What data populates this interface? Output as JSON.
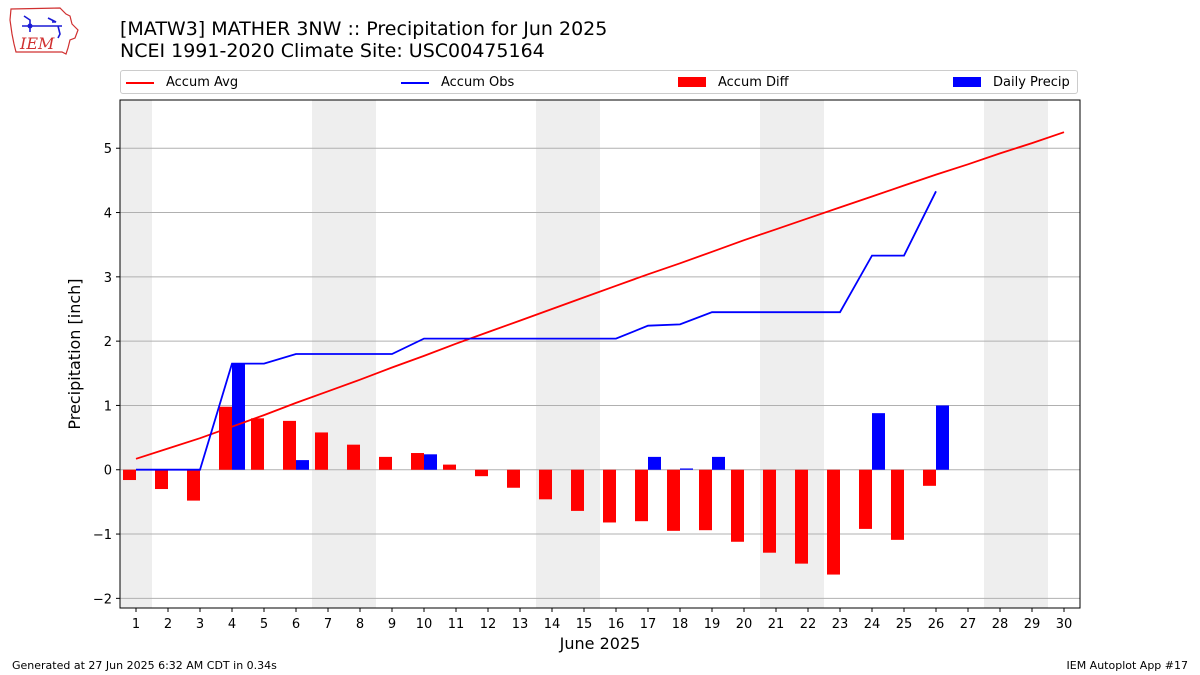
{
  "header": {
    "title_line1": "[MATW3] MATHER 3NW :: Precipitation for Jun 2025",
    "title_line2": "NCEI 1991-2020 Climate Site: USC00475164"
  },
  "logo": {
    "text": "IEM",
    "icon": "iem-iowa-map-logo",
    "color": "#d03030",
    "accent": "#1a1ad6"
  },
  "legend": {
    "placement": "top",
    "items": [
      {
        "label": "Accum Avg",
        "kind": "line",
        "color": "#ff0000"
      },
      {
        "label": "Accum Obs",
        "kind": "line",
        "color": "#0000ff"
      },
      {
        "label": "Accum Diff",
        "kind": "patch",
        "color": "#ff0000"
      },
      {
        "label": "Daily Precip",
        "kind": "patch",
        "color": "#0000ff"
      }
    ]
  },
  "footer": {
    "left": "Generated at 27 Jun 2025 6:32 AM CDT in 0.34s",
    "right": "IEM Autoplot App #17"
  },
  "chart_data": {
    "type": "bar",
    "title": "[MATW3] MATHER 3NW :: Precipitation for Jun 2025",
    "subtitle": "NCEI 1991-2020 Climate Site: USC00475164",
    "xlabel": "June 2025",
    "ylabel": "Precipitation [inch]",
    "xlim": [
      0.5,
      30.5
    ],
    "ylim": [
      -2.15,
      5.75
    ],
    "x_ticks": [
      1,
      2,
      3,
      4,
      5,
      6,
      7,
      8,
      9,
      10,
      11,
      12,
      13,
      14,
      15,
      16,
      17,
      18,
      19,
      20,
      21,
      22,
      23,
      24,
      25,
      26,
      27,
      28,
      29,
      30
    ],
    "y_ticks": [
      -2,
      -1,
      0,
      1,
      2,
      3,
      4,
      5
    ],
    "y_tick_labels": [
      "−2",
      "−1",
      "0",
      "1",
      "2",
      "3",
      "4",
      "5"
    ],
    "grid": "horizontal",
    "weekend_shading": [
      [
        0.5,
        1.5
      ],
      [
        6.5,
        8.5
      ],
      [
        13.5,
        15.5
      ],
      [
        20.5,
        22.5
      ],
      [
        27.5,
        29.5
      ]
    ],
    "shading_color": "#eeeeee",
    "series": [
      {
        "name": "Accum Avg",
        "kind": "line",
        "color": "#ff0000",
        "x": [
          1,
          2,
          3,
          4,
          5,
          6,
          7,
          8,
          9,
          10,
          11,
          12,
          13,
          14,
          15,
          16,
          17,
          18,
          19,
          20,
          21,
          22,
          23,
          24,
          25,
          26,
          27,
          28,
          29,
          30
        ],
        "values": [
          0.17,
          0.33,
          0.49,
          0.67,
          0.85,
          1.04,
          1.22,
          1.4,
          1.59,
          1.77,
          1.96,
          2.14,
          2.32,
          2.5,
          2.68,
          2.86,
          3.04,
          3.21,
          3.39,
          3.57,
          3.74,
          3.91,
          4.08,
          4.25,
          4.42,
          4.59,
          4.75,
          4.92,
          5.08,
          5.25
        ]
      },
      {
        "name": "Accum Obs",
        "kind": "line",
        "color": "#0000ff",
        "x": [
          1,
          2,
          3,
          4,
          5,
          6,
          7,
          8,
          9,
          10,
          11,
          12,
          13,
          14,
          15,
          16,
          17,
          18,
          19,
          20,
          21,
          22,
          23,
          24,
          25,
          26
        ],
        "values": [
          0.0,
          0.0,
          0.0,
          1.65,
          1.65,
          1.8,
          1.8,
          1.8,
          1.8,
          2.04,
          2.04,
          2.04,
          2.04,
          2.04,
          2.04,
          2.04,
          2.24,
          2.26,
          2.45,
          2.45,
          2.45,
          2.45,
          2.45,
          3.33,
          3.33,
          4.33
        ]
      },
      {
        "name": "Accum Diff",
        "kind": "bar",
        "color": "#ff0000",
        "x": [
          1,
          2,
          3,
          4,
          5,
          6,
          7,
          8,
          9,
          10,
          11,
          12,
          13,
          14,
          15,
          16,
          17,
          18,
          19,
          20,
          21,
          22,
          23,
          24,
          25,
          26
        ],
        "values": [
          -0.16,
          -0.3,
          -0.48,
          0.98,
          0.8,
          0.76,
          0.58,
          0.39,
          0.2,
          0.26,
          0.08,
          -0.1,
          -0.28,
          -0.46,
          -0.64,
          -0.82,
          -0.8,
          -0.95,
          -0.94,
          -1.12,
          -1.29,
          -1.46,
          -1.63,
          -0.92,
          -1.09,
          -0.25
        ]
      },
      {
        "name": "Daily Precip",
        "kind": "bar",
        "color": "#0000ff",
        "x": [
          1,
          2,
          3,
          4,
          5,
          6,
          7,
          8,
          9,
          10,
          11,
          12,
          13,
          14,
          15,
          16,
          17,
          18,
          19,
          20,
          21,
          22,
          23,
          24,
          25,
          26
        ],
        "values": [
          0,
          0,
          0,
          1.65,
          0,
          0.15,
          0,
          0,
          0,
          0.24,
          0,
          0,
          0,
          0,
          0,
          0,
          0.2,
          0.02,
          0.2,
          0,
          0,
          0,
          0,
          0.88,
          0,
          1.0
        ]
      }
    ]
  }
}
